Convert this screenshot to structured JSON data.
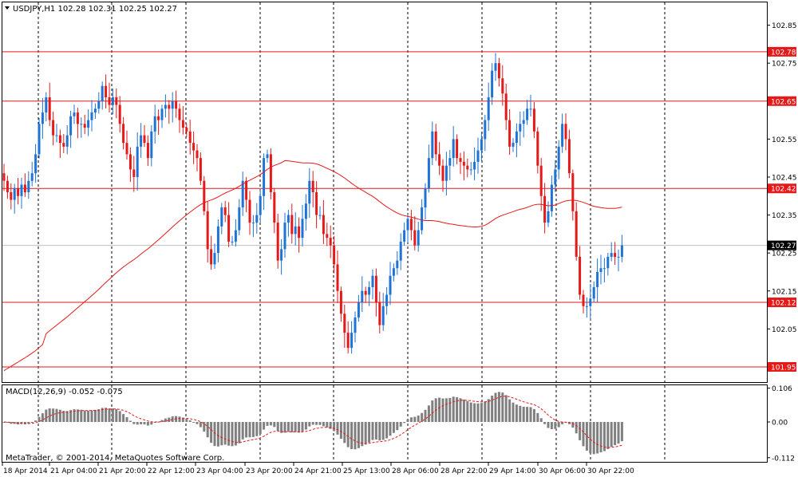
{
  "chart_data": [
    {
      "type": "candlestick",
      "symbol_header": "USDJPY,H1  102.28 102.31 102.25 102.27",
      "timeframe": "H1",
      "last_ohlc": {
        "open": 102.28,
        "high": 102.31,
        "low": 102.25,
        "close": 102.27
      },
      "current_price": 102.27,
      "ylim": [
        101.91,
        102.91
      ],
      "y_ticks": [
        102.85,
        102.75,
        102.65,
        102.55,
        102.45,
        102.35,
        102.25,
        102.15,
        102.05,
        101.95
      ],
      "x_ticks": [
        "18 Apr 2014",
        "21 Apr 04:00",
        "21 Apr 20:00",
        "22 Apr 12:00",
        "23 Apr 04:00",
        "23 Apr 20:00",
        "24 Apr 21:00",
        "25 Apr 13:00",
        "28 Apr 06:00",
        "28 Apr 22:00",
        "29 Apr 14:00",
        "30 Apr 06:00",
        "30 Apr 22:00"
      ],
      "horizontal_levels": [
        102.78,
        102.65,
        102.42,
        102.12,
        101.95
      ],
      "up_color": "#1e73d6",
      "down_color": "#e61919",
      "level_color": "#e61919",
      "candles_close": [
        102.44,
        102.41,
        102.39,
        102.42,
        102.4,
        102.43,
        102.41,
        102.44,
        102.46,
        102.51,
        102.59,
        102.62,
        102.66,
        102.6,
        102.56,
        102.56,
        102.54,
        102.53,
        102.56,
        102.61,
        102.62,
        102.59,
        102.59,
        102.58,
        102.6,
        102.62,
        102.63,
        102.65,
        102.69,
        102.66,
        102.64,
        102.66,
        102.64,
        102.59,
        102.54,
        102.51,
        102.47,
        102.45,
        102.53,
        102.56,
        102.54,
        102.5,
        102.57,
        102.61,
        102.6,
        102.63,
        102.64,
        102.63,
        102.65,
        102.63,
        102.6,
        102.58,
        102.57,
        102.54,
        102.52,
        102.5,
        102.44,
        102.36,
        102.26,
        102.22,
        102.25,
        102.32,
        102.37,
        102.35,
        102.28,
        102.28,
        102.31,
        102.37,
        102.44,
        102.39,
        102.33,
        102.33,
        102.35,
        102.4,
        102.5,
        102.51,
        102.41,
        102.33,
        102.23,
        102.26,
        102.33,
        102.35,
        102.3,
        102.32,
        102.29,
        102.34,
        102.38,
        102.44,
        102.41,
        102.35,
        102.35,
        102.3,
        102.29,
        102.27,
        102.22,
        102.15,
        102.09,
        102.04,
        102.0,
        102.04,
        102.08,
        102.12,
        102.15,
        102.14,
        102.16,
        102.19,
        102.12,
        102.06,
        102.11,
        102.14,
        102.19,
        102.21,
        102.23,
        102.28,
        102.31,
        102.34,
        102.31,
        102.27,
        102.31,
        102.37,
        102.42,
        102.5,
        102.57,
        102.51,
        102.48,
        102.44,
        102.48,
        102.5,
        102.55,
        102.5,
        102.49,
        102.48,
        102.47,
        102.47,
        102.49,
        102.52,
        102.55,
        102.6,
        102.66,
        102.73,
        102.75,
        102.71,
        102.67,
        102.6,
        102.53,
        102.54,
        102.57,
        102.59,
        102.6,
        102.63,
        102.63,
        102.57,
        102.48,
        102.4,
        102.33,
        102.36,
        102.43,
        102.47,
        102.53,
        102.59,
        102.55,
        102.46,
        102.36,
        102.24,
        102.14,
        102.11,
        102.11,
        102.13,
        102.16,
        102.2,
        102.21,
        102.21,
        102.24,
        102.25,
        102.24,
        102.24,
        102.27
      ]
    },
    {
      "type": "line",
      "label": "MACD(12,26,9) -0.052 -0.075",
      "macd": -0.052,
      "signal": -0.075,
      "ylim": [
        -0.125,
        0.115
      ],
      "y_ticks": [
        0.106,
        0.0,
        -0.112
      ],
      "copyright": "MetaTrader, © 2001-2014, MetaQuotes Software Corp."
    }
  ]
}
